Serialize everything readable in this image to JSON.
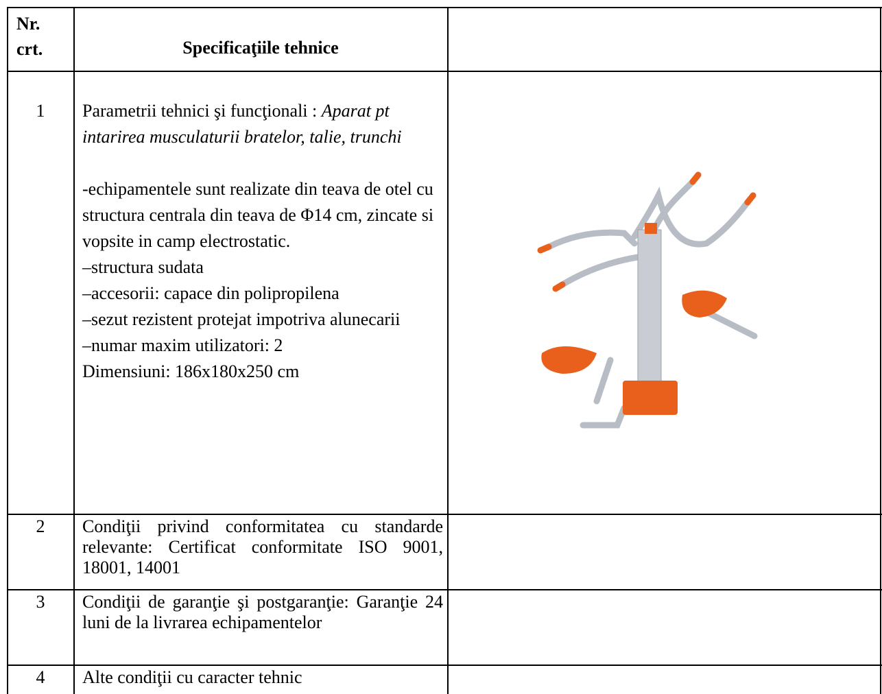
{
  "table": {
    "header": {
      "number": [
        "Nr.",
        "crt."
      ],
      "specification": "Specificaţiile tehnice"
    },
    "rows": [
      {
        "number": "1",
        "label": "Parametrii tehnici şi funcţionali : ",
        "label_italic": "Aparat pt intarirea musculaturii bratelor, talie, trunchi",
        "details": [
          "-echipamentele sunt realizate din teava de otel cu structura centrala din teava de Φ14 cm, zincate si vopsite in camp electrostatic.",
          "–structura sudata",
          "–accesorii: capace din polipropilena",
          "–sezut rezistent protejat impotriva alunecarii",
          "–numar maxim utilizatori: 2",
          "Dimensiuni: 186x180x250 cm"
        ]
      },
      {
        "number": "2",
        "text": "Condiţii privind conformitatea cu standarde relevante: Certificat conformitate ISO 9001, 18001, 14001"
      },
      {
        "number": "3",
        "text": "Condiţii de garanţie şi postgaranţie: Garanţie 24 luni de la livrarea echipamentelor"
      },
      {
        "number": "4",
        "text": "Alte condiţii cu caracter tehnic"
      }
    ]
  }
}
